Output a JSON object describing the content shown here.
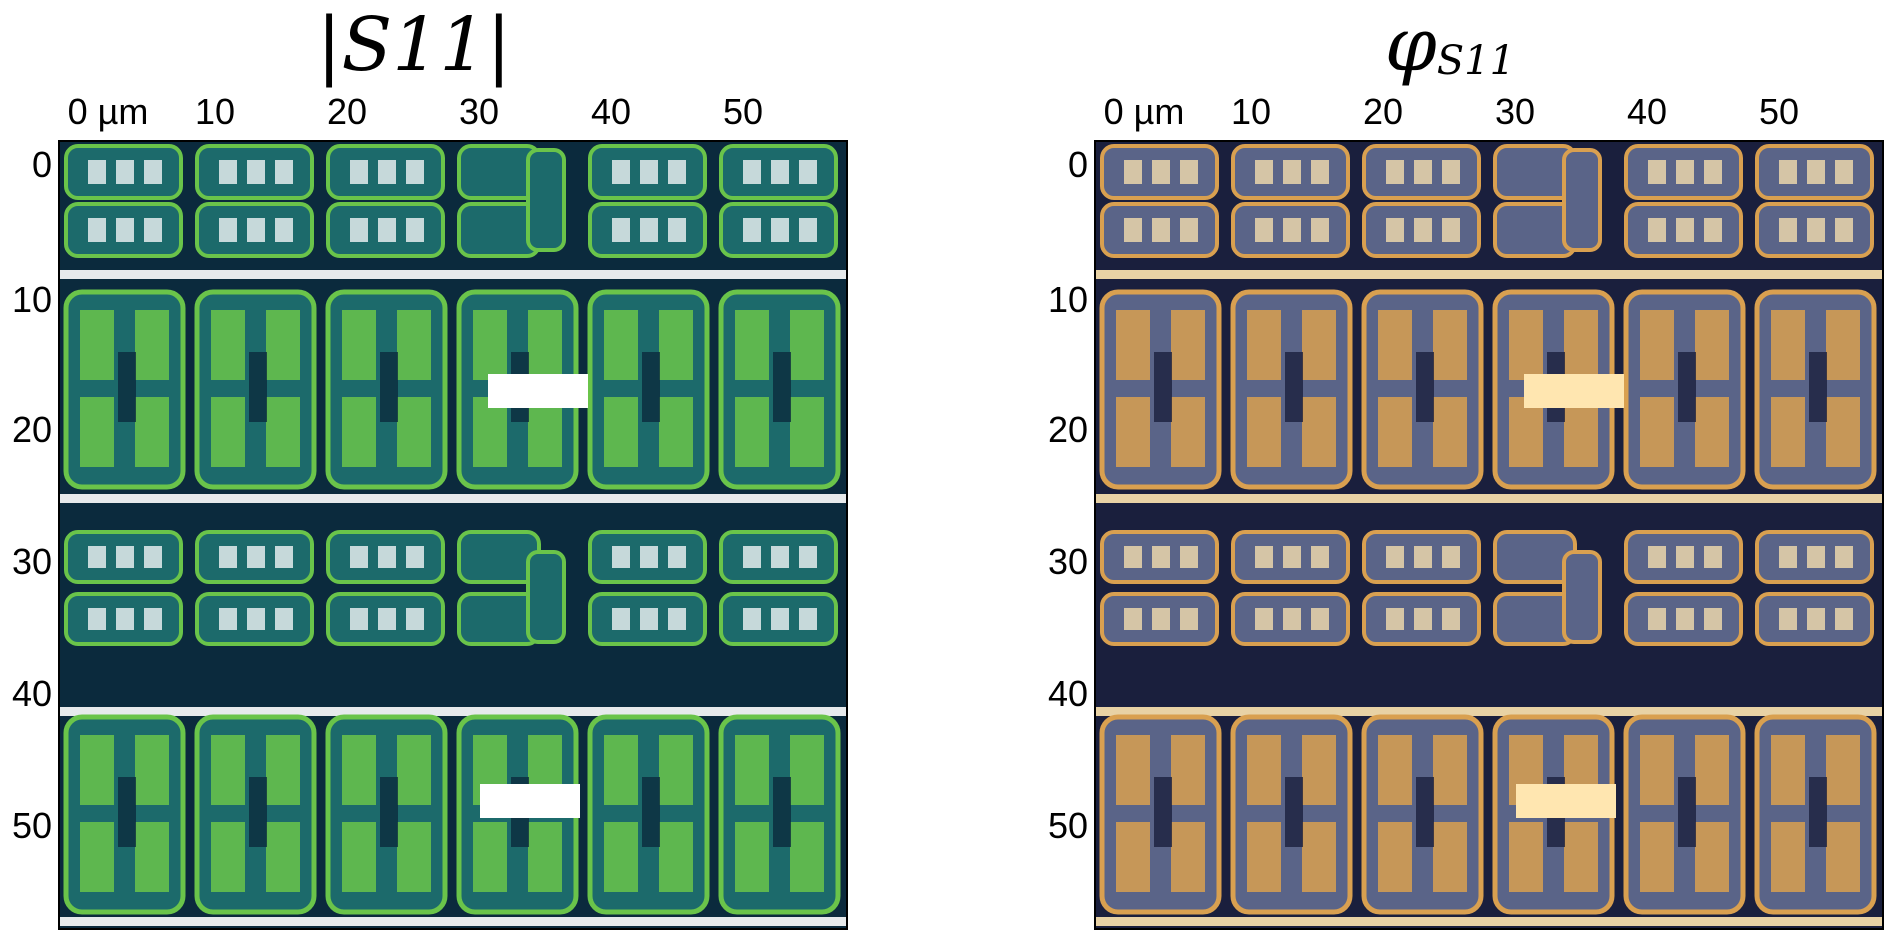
{
  "panels": [
    {
      "id": "magnitude",
      "title": "|S11|",
      "title_sub": "",
      "x_ticks": [
        "0 µm",
        "10",
        "20",
        "30",
        "40",
        "50"
      ],
      "y_ticks": [
        "0",
        "10",
        "20",
        "30",
        "40",
        "50"
      ],
      "colormap": "green-navy",
      "colors": {
        "background": "#0b2a3d",
        "cell_mid": "#1c6a6b",
        "bright": "#6ac44a",
        "highlight": "#ffffff"
      }
    },
    {
      "id": "phase",
      "title": "φ",
      "title_sub": "S11",
      "x_ticks": [
        "0 µm",
        "10",
        "20",
        "30",
        "40",
        "50"
      ],
      "y_ticks": [
        "0",
        "10",
        "20",
        "30",
        "40",
        "50"
      ],
      "colormap": "navy-gold",
      "colors": {
        "background": "#1a1f3d",
        "cell_mid": "#5a6488",
        "bright": "#d9a050",
        "highlight": "#ffe6b0"
      }
    }
  ]
}
